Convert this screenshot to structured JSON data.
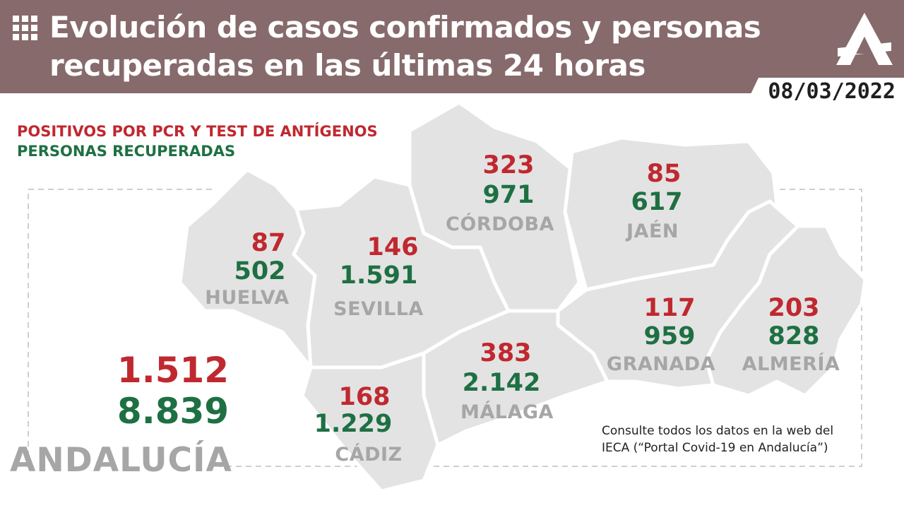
{
  "header": {
    "title": "Evolución de casos confirmados y personas recuperadas en las últimas 24 horas",
    "date": "08/03/2022",
    "grid_icon": "grid-icon",
    "logo_icon": "junta-andalucia-logo"
  },
  "legend": {
    "positives": "POSITIVOS POR PCR Y TEST DE ANTÍGENOS",
    "recovered": "PERSONAS RECUPERADAS"
  },
  "provinces": [
    {
      "name": "HUELVA",
      "positives": "87",
      "recovered": "502"
    },
    {
      "name": "SEVILLA",
      "positives": "146",
      "recovered": "1.591"
    },
    {
      "name": "CÓRDOBA",
      "positives": "323",
      "recovered": "971"
    },
    {
      "name": "JAÉN",
      "positives": "85",
      "recovered": "617"
    },
    {
      "name": "GRANADA",
      "positives": "117",
      "recovered": "959"
    },
    {
      "name": "ALMERÍA",
      "positives": "203",
      "recovered": "828"
    },
    {
      "name": "MÁLAGA",
      "positives": "383",
      "recovered": "2.142"
    },
    {
      "name": "CÁDIZ",
      "positives": "168",
      "recovered": "1.229"
    }
  ],
  "total": {
    "label": "ANDALUCÍA",
    "positives": "1.512",
    "recovered": "8.839"
  },
  "note": "Consulte todos los datos en la web del IECA (“Portal Covid-19 en Andalucía”)",
  "colors": {
    "header_bg": "#876a6b",
    "positives": "#c0282f",
    "recovered": "#1e7043",
    "province_fill": "#e3e3e3",
    "province_label": "#a6a6a6"
  }
}
